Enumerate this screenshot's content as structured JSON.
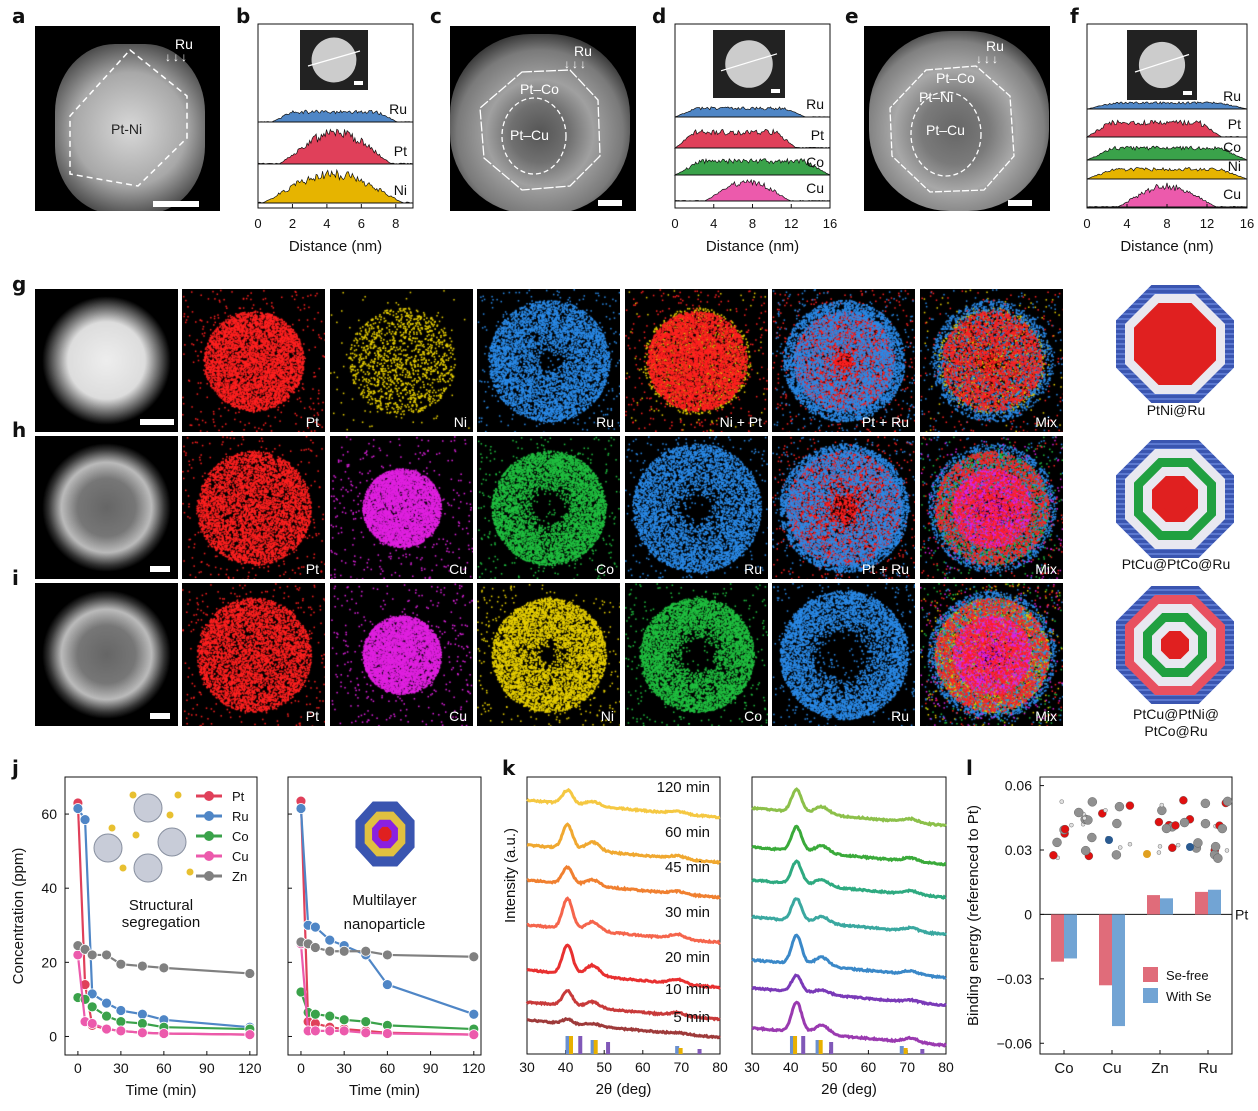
{
  "panel_labels": {
    "a": "a",
    "b": "b",
    "c": "c",
    "d": "d",
    "e": "e",
    "f": "f",
    "g": "g",
    "h": "h",
    "i": "i",
    "j": "j",
    "k": "k",
    "l": "l"
  },
  "colors": {
    "Pt": "#e0405a",
    "Ru": "#4f86c6",
    "Ni": "#e6b400",
    "Co": "#3aa24a",
    "Cu": "#ec5aac",
    "Zn": "#808080"
  },
  "stem": {
    "a": {
      "regions": [
        "Pt-Ni"
      ],
      "arrow_label": "Ru"
    },
    "c": {
      "regions": [
        "Pt–Co",
        "Pt–Cu"
      ],
      "arrow_label": "Ru"
    },
    "e": {
      "regions": [
        "Pt–Co",
        "Pt–Ni",
        "Pt–Cu"
      ],
      "arrow_label": "Ru"
    }
  },
  "maps": {
    "g": [
      "Pt",
      "Ni",
      "Ru",
      "Ni + Pt",
      "Pt + Ru",
      "Mix"
    ],
    "h": [
      "Pt",
      "Cu",
      "Co",
      "Ru",
      "Pt + Ru",
      "Mix"
    ],
    "i": [
      "Pt",
      "Cu",
      "Ni",
      "Co",
      "Ru",
      "Mix"
    ]
  },
  "models": {
    "g": {
      "label": "PtNi@Ru"
    },
    "h": {
      "label": "PtCu@PtCo@Ru"
    },
    "i": {
      "label_line1": "PtCu@PtNi@",
      "label_line2": "PtCo@Ru"
    }
  },
  "chart_data": [
    {
      "id": "b",
      "type": "area",
      "xlabel": "Distance (nm)",
      "xticks": [
        0,
        2,
        4,
        6,
        8
      ],
      "xlim": [
        0,
        9
      ],
      "series": [
        {
          "name": "Ru",
          "extent": [
            0.8,
            8.1
          ],
          "shape": "flat"
        },
        {
          "name": "Pt",
          "extent": [
            1.2,
            7.8
          ],
          "shape": "peak"
        },
        {
          "name": "Ni",
          "extent": [
            0.2,
            8.5
          ],
          "shape": "peak"
        }
      ]
    },
    {
      "id": "d",
      "type": "area",
      "xlabel": "Distance (nm)",
      "xticks": [
        0,
        4,
        8,
        12,
        16
      ],
      "xlim": [
        0,
        16
      ],
      "series": [
        {
          "name": "Ru",
          "extent": [
            0,
            13.5
          ],
          "shape": "flat"
        },
        {
          "name": "Pt",
          "extent": [
            0,
            12.5
          ],
          "shape": "flat"
        },
        {
          "name": "Co",
          "extent": [
            0,
            16
          ],
          "shape": "flat"
        },
        {
          "name": "Cu",
          "extent": [
            3,
            12
          ],
          "shape": "peak"
        }
      ]
    },
    {
      "id": "f",
      "type": "area",
      "xlabel": "Distance (nm)",
      "xticks": [
        0,
        4,
        8,
        12,
        16
      ],
      "xlim": [
        0,
        16
      ],
      "series": [
        {
          "name": "Ru",
          "extent": [
            0,
            16
          ],
          "shape": "flat"
        },
        {
          "name": "Pt",
          "extent": [
            0,
            13.5
          ],
          "shape": "flat"
        },
        {
          "name": "Co",
          "extent": [
            0,
            16
          ],
          "shape": "flat"
        },
        {
          "name": "Ni",
          "extent": [
            0,
            16
          ],
          "shape": "flat"
        },
        {
          "name": "Cu",
          "extent": [
            3,
            13
          ],
          "shape": "peak"
        }
      ]
    },
    {
      "id": "j-left",
      "type": "line",
      "xlabel": "Time (min)",
      "ylabel": "Concentration (ppm)",
      "xticks": [
        0,
        30,
        60,
        90,
        120
      ],
      "yticks": [
        0,
        20,
        40,
        60
      ],
      "ylim": [
        -5,
        70
      ],
      "xlim": [
        -9,
        125
      ],
      "annotation": [
        "Structural",
        "segregation"
      ],
      "legend": "top-right",
      "x": [
        0,
        5,
        10,
        20,
        30,
        45,
        60,
        120
      ],
      "series": [
        {
          "name": "Pt",
          "values": [
            63,
            14,
            3,
            2,
            1.5,
            1,
            0.8,
            0.5
          ]
        },
        {
          "name": "Ru",
          "values": [
            61.5,
            58.5,
            11.5,
            9,
            7,
            6,
            4.5,
            2.5
          ]
        },
        {
          "name": "Co",
          "values": [
            10.5,
            10,
            8,
            5.5,
            4,
            3.5,
            2.5,
            2
          ]
        },
        {
          "name": "Cu",
          "values": [
            22,
            4,
            3.5,
            2,
            1.5,
            1,
            0.8,
            0.5
          ]
        },
        {
          "name": "Zn",
          "values": [
            24.5,
            23.5,
            22,
            22,
            19.5,
            19,
            18.5,
            17
          ]
        }
      ]
    },
    {
      "id": "j-right",
      "type": "line",
      "xlabel": "Time (min)",
      "xticks": [
        0,
        30,
        60,
        90,
        120
      ],
      "ylim": [
        -5,
        70
      ],
      "xlim": [
        -9,
        125
      ],
      "annotation": [
        "Multilayer",
        "nanoparticle"
      ],
      "x": [
        0,
        5,
        10,
        20,
        30,
        45,
        60,
        120
      ],
      "series": [
        {
          "name": "Pt",
          "values": [
            63.5,
            4,
            3.5,
            2.5,
            2,
            1.5,
            1,
            0.5
          ]
        },
        {
          "name": "Ru",
          "values": [
            61.5,
            30,
            29.5,
            26,
            24.5,
            22,
            14,
            6
          ]
        },
        {
          "name": "Co",
          "values": [
            12,
            6.5,
            6,
            5.5,
            4.5,
            4,
            3,
            2
          ]
        },
        {
          "name": "Cu",
          "values": [
            25,
            1.5,
            1.5,
            1.5,
            1.5,
            1,
            0.8,
            0.5
          ]
        },
        {
          "name": "Zn",
          "values": [
            25.5,
            25,
            24,
            23,
            23,
            23,
            22,
            21.5
          ]
        }
      ]
    },
    {
      "id": "k-left",
      "type": "line",
      "xlabel": "2θ (deg)",
      "ylabel": "Intensity (a.u.)",
      "xticks": [
        30,
        40,
        50,
        60,
        70,
        80
      ],
      "xlim": [
        30,
        80
      ],
      "peaks": [
        40.5,
        47,
        69
      ],
      "series": [
        {
          "name": "120 min",
          "color": "#f5c842",
          "rel_intensity": [
            0.45,
            0.15,
            0.08
          ]
        },
        {
          "name": "60 min",
          "color": "#f0a830",
          "rel_intensity": [
            0.8,
            0.3,
            0.1
          ]
        },
        {
          "name": "45 min",
          "color": "#f08030",
          "rel_intensity": [
            0.55,
            0.2,
            0.08
          ]
        },
        {
          "name": "30 min",
          "color": "#f5654c",
          "rel_intensity": [
            1.0,
            0.3,
            0.15
          ]
        },
        {
          "name": "20 min",
          "color": "#e83030",
          "rel_intensity": [
            0.95,
            0.35,
            0.15
          ]
        },
        {
          "name": "10 min",
          "color": "#c83a3a",
          "rel_intensity": [
            0.5,
            0.2,
            0.1
          ]
        },
        {
          "name": "5 min",
          "color": "#9e3a3a",
          "rel_intensity": [
            0.15,
            0.08,
            0.03
          ]
        }
      ],
      "reference_ticks": [
        40.5,
        41.4,
        43.8,
        47,
        47.8,
        51,
        68.9,
        69.8,
        74.7
      ]
    },
    {
      "id": "k-right",
      "type": "line",
      "xlabel": "2θ (deg)",
      "xticks": [
        30,
        40,
        50,
        60,
        70,
        80
      ],
      "xlim": [
        30,
        80
      ],
      "peaks": [
        41.5,
        48,
        71
      ],
      "series": [
        {
          "color": "#8cc04a",
          "rel_intensity": [
            0.75,
            0.25,
            0.12
          ]
        },
        {
          "color": "#3aaa3a",
          "rel_intensity": [
            0.8,
            0.25,
            0.12
          ]
        },
        {
          "color": "#2eaa80",
          "rel_intensity": [
            0.75,
            0.22,
            0.12
          ]
        },
        {
          "color": "#3aa8a0",
          "rel_intensity": [
            0.75,
            0.22,
            0.12
          ]
        },
        {
          "color": "#3a88c8",
          "rel_intensity": [
            0.95,
            0.3,
            0.12
          ]
        },
        {
          "color": "#7a3ab8",
          "rel_intensity": [
            0.55,
            0.15,
            0.08
          ]
        },
        {
          "color": "#9a3ab0",
          "rel_intensity": [
            1.0,
            0.3,
            0.15
          ]
        }
      ],
      "reference_ticks": [
        40.3,
        41.1,
        43.2,
        46.9,
        47.7,
        50.4,
        68.6,
        69.6,
        73.9
      ]
    },
    {
      "id": "l",
      "type": "bar",
      "ylabel": "Binding energy (referenced to Pt)",
      "categories": [
        "Co",
        "Cu",
        "Zn",
        "Ru"
      ],
      "yticks": [
        -0.06,
        -0.03,
        0,
        0.03,
        0.06
      ],
      "ytick_labels": [
        "−0.06",
        "−0.03",
        "0",
        "0.03",
        "0.06"
      ],
      "ylim": [
        -0.065,
        0.064
      ],
      "zero_label": "Pt",
      "legend": "center-right",
      "series": [
        {
          "name": "Se-free",
          "color": "#e06c7a",
          "values": [
            -0.022,
            -0.033,
            0.009,
            0.0105
          ]
        },
        {
          "name": "With Se",
          "color": "#72a4d4",
          "values": [
            -0.0205,
            -0.052,
            0.0075,
            0.0115
          ]
        }
      ]
    }
  ]
}
